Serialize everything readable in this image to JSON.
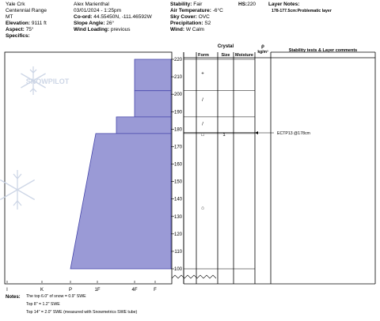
{
  "header": {
    "col1": [
      "Yale Crk",
      "Centennial Range",
      "MT"
    ],
    "elevation_label": "Elevation:",
    "elevation": "9111 ft",
    "aspect_label": "Aspect:",
    "aspect": "75°",
    "specifics_label": "Specifics:",
    "observer": "Alex Marienthal",
    "datetime": "03/01/2024 - 1:25pm",
    "coord_label": "Co-ord:",
    "coord": "44.55450N, -111.46592W",
    "slope_label": "Slope Angle:",
    "slope": "26°",
    "wind_loading_label": "Wind Loading:",
    "wind_loading": "previous",
    "stability_label": "Stability:",
    "stability": "Fair",
    "hs_label": "HS:",
    "hs": "220",
    "air_temp_label": "Air Temperature:",
    "air_temp": "-6°C",
    "sky_label": "Sky Cover:",
    "sky": "OVC",
    "precip_label": "Precipitation:",
    "precip": "S2",
    "wind_label": "Wind:",
    "wind": "W Calm",
    "layer_notes_label": "Layer Notes:",
    "layer_notes": "178-177.5cm:Problematic layer"
  },
  "watermark": "SNOWPILOT",
  "table_headers": {
    "crystal": "Crystal",
    "form": "Form",
    "size": "Size",
    "moisture": "Moisture",
    "rho": "ρ",
    "rho_unit": "kg/m³",
    "comments": "Stability tests & Layer comments"
  },
  "height_ticks": [
    "220",
    "210",
    "200",
    "190",
    "180",
    "170",
    "160",
    "150",
    "140",
    "130",
    "120",
    "110",
    "100"
  ],
  "hardness_ticks": [
    "I",
    "K",
    "P",
    "1F",
    "4F",
    "F"
  ],
  "layer_marks": [
    {
      "form": "+",
      "size": ""
    },
    {
      "form": "/",
      "size": ""
    },
    {
      "form": "/",
      "size": ""
    },
    {
      "form": "□",
      "size": "1"
    },
    {
      "form": "⌂",
      "size": ""
    }
  ],
  "stability_test": "ECTP13 @178cm",
  "notes": {
    "label": "Notes:",
    "lines": [
      "The top 6.0\" of snow = 0.9\" SWE",
      "Top 8\" = 1.2\" SWE",
      "Top 14\" = 2.0\" SWE (measured with Snowmetrics SWE tube)"
    ]
  },
  "colors": {
    "layer_fill": "#9a9ad6",
    "layer_stroke": "#4444aa",
    "watermark": "#c8d2e4"
  },
  "chart_data": {
    "type": "hardness_profile",
    "ylim": [
      100,
      220
    ],
    "y_ticks": [
      220,
      210,
      200,
      190,
      180,
      170,
      160,
      150,
      140,
      130,
      120,
      110,
      100
    ],
    "x_categories": [
      "I",
      "K",
      "P",
      "1F",
      "4F",
      "F"
    ],
    "layers": [
      {
        "top": 220,
        "bottom": 202,
        "hardness_top": "4F",
        "hardness_bottom": "4F"
      },
      {
        "top": 202,
        "bottom": 187,
        "hardness_top": "4F",
        "hardness_bottom": "4F"
      },
      {
        "top": 187,
        "bottom": 177.5,
        "hardness_top": "1F+",
        "hardness_bottom": "1F+"
      },
      {
        "top": 177.5,
        "bottom": 100,
        "hardness_top": "1F-",
        "hardness_bottom": "P"
      }
    ],
    "crystal_form_marks": [
      {
        "height": 212,
        "form": "+"
      },
      {
        "height": 197,
        "form": "/"
      },
      {
        "height": 183,
        "form": "/"
      },
      {
        "height": 177,
        "form": "□",
        "size": "1"
      },
      {
        "height": 135,
        "form": "⌂"
      }
    ],
    "stability_tests": [
      {
        "height": 178,
        "result": "ECTP13 @178cm"
      }
    ]
  }
}
